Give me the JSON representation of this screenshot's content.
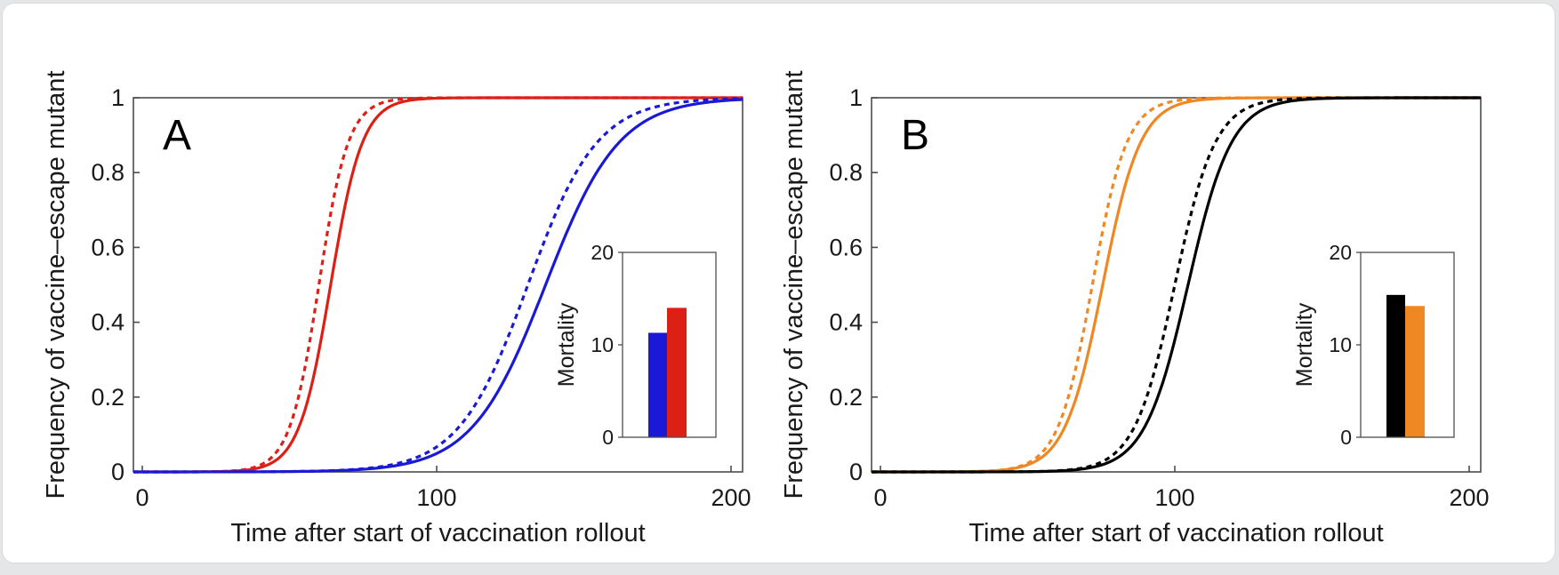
{
  "page": {
    "background_color": "#e5e6e8",
    "card_background": "#ffffff",
    "card_border_color": "#d9d9d9"
  },
  "chart_data": [
    {
      "panel_label": "A",
      "type": "line",
      "xlabel": "Time after start of vaccination rollout",
      "ylabel": "Frequency of vaccine–escape mutant",
      "xlim": [
        0,
        204
      ],
      "ylim": [
        0,
        1
      ],
      "xticks": [
        0,
        100,
        200
      ],
      "yticks": [
        0,
        0.2,
        0.4,
        0.6,
        0.8,
        1
      ],
      "grid": false,
      "axis_color": "#4d4d4d",
      "series": [
        {
          "name": "red-dashed",
          "color": "#dd2016",
          "style": "dashed",
          "logistic": {
            "midpoint": 60,
            "rate": 0.2
          }
        },
        {
          "name": "red-solid",
          "color": "#dd2016",
          "style": "solid",
          "logistic": {
            "midpoint": 64,
            "rate": 0.185
          }
        },
        {
          "name": "blue-dashed",
          "color": "#1a1ad6",
          "style": "dashed",
          "logistic": {
            "midpoint": 131,
            "rate": 0.085
          }
        },
        {
          "name": "blue-solid",
          "color": "#1a1ad6",
          "style": "solid",
          "logistic": {
            "midpoint": 137,
            "rate": 0.08
          }
        }
      ],
      "inset": {
        "type": "bar",
        "ylabel": "Mortality",
        "ylim": [
          0,
          20
        ],
        "yticks": [
          0,
          10,
          20
        ],
        "bars": [
          {
            "name": "blue-bar",
            "color": "#1a1ad6",
            "value": 11.3
          },
          {
            "name": "red-bar",
            "color": "#dd2016",
            "value": 14.0
          }
        ]
      }
    },
    {
      "panel_label": "B",
      "type": "line",
      "xlabel": "Time after start of vaccination rollout",
      "ylabel": "Frequency of vaccine–escape mutant",
      "xlim": [
        0,
        204
      ],
      "ylim": [
        0,
        1
      ],
      "xticks": [
        0,
        100,
        200
      ],
      "yticks": [
        0,
        0.2,
        0.4,
        0.6,
        0.8,
        1
      ],
      "grid": false,
      "axis_color": "#4d4d4d",
      "series": [
        {
          "name": "orange-dashed",
          "color": "#ef8722",
          "style": "dashed",
          "logistic": {
            "midpoint": 72,
            "rate": 0.17
          }
        },
        {
          "name": "orange-solid",
          "color": "#ef8722",
          "style": "solid",
          "logistic": {
            "midpoint": 75.5,
            "rate": 0.155
          }
        },
        {
          "name": "black-dashed",
          "color": "#000000",
          "style": "dashed",
          "logistic": {
            "midpoint": 100,
            "rate": 0.145
          }
        },
        {
          "name": "black-solid",
          "color": "#000000",
          "style": "solid",
          "logistic": {
            "midpoint": 104.5,
            "rate": 0.135
          }
        }
      ],
      "inset": {
        "type": "bar",
        "ylabel": "Mortality",
        "ylim": [
          0,
          20
        ],
        "yticks": [
          0,
          10,
          20
        ],
        "bars": [
          {
            "name": "black-bar",
            "color": "#000000",
            "value": 15.4
          },
          {
            "name": "orange-bar",
            "color": "#ef8722",
            "value": 14.2
          }
        ]
      }
    }
  ]
}
